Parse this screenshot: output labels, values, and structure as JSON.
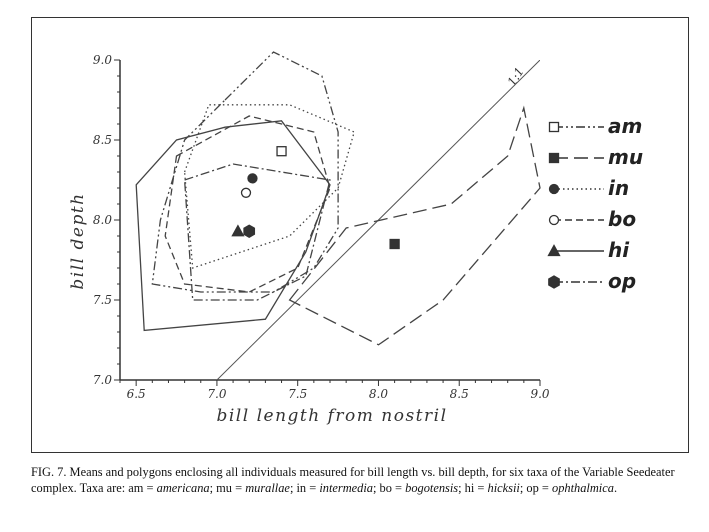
{
  "chart_data": {
    "type": "scatter",
    "title": "",
    "xlabel": "bill length from nostril",
    "ylabel": "bill depth",
    "xlim": [
      6.4,
      9.0
    ],
    "ylim": [
      7.0,
      9.0
    ],
    "x_ticks": [
      "6.5",
      "7.0",
      "7.5",
      "8.0",
      "8.5",
      "9.0"
    ],
    "y_ticks": [
      "7.0",
      "7.5",
      "8.0",
      "8.5",
      "9.0"
    ],
    "grid": false,
    "legend_position": "right",
    "reference_line": {
      "label": "1:1",
      "from": [
        7.0,
        7.0
      ],
      "to": [
        9.0,
        9.0
      ]
    },
    "series": [
      {
        "name": "am",
        "marker": "open-square",
        "line_style": "dash-dot-dot",
        "mean": [
          7.4,
          8.43
        ],
        "polygon": [
          [
            7.05,
            8.75
          ],
          [
            7.35,
            9.05
          ],
          [
            7.65,
            8.9
          ],
          [
            7.75,
            8.55
          ],
          [
            7.75,
            7.95
          ],
          [
            7.6,
            7.7
          ],
          [
            7.35,
            7.55
          ],
          [
            6.9,
            7.55
          ],
          [
            6.6,
            7.6
          ],
          [
            6.65,
            8.0
          ],
          [
            6.8,
            8.5
          ]
        ]
      },
      {
        "name": "mu",
        "marker": "filled-square",
        "line_style": "long-dash",
        "mean": [
          8.1,
          7.85
        ],
        "polygon": [
          [
            7.45,
            7.5
          ],
          [
            7.8,
            7.95
          ],
          [
            8.45,
            8.1
          ],
          [
            8.8,
            8.4
          ],
          [
            8.9,
            8.7
          ],
          [
            9.0,
            8.2
          ],
          [
            8.4,
            7.5
          ],
          [
            8.0,
            7.22
          ]
        ]
      },
      {
        "name": "in",
        "marker": "filled-circle",
        "line_style": "dotted",
        "mean": [
          7.22,
          8.26
        ],
        "polygon": [
          [
            6.8,
            8.3
          ],
          [
            6.95,
            8.72
          ],
          [
            7.45,
            8.72
          ],
          [
            7.85,
            8.55
          ],
          [
            7.75,
            8.2
          ],
          [
            7.45,
            7.9
          ],
          [
            6.85,
            7.7
          ]
        ]
      },
      {
        "name": "bo",
        "marker": "open-circle",
        "line_style": "dashed",
        "mean": [
          7.18,
          8.17
        ],
        "polygon": [
          [
            6.75,
            8.4
          ],
          [
            7.2,
            8.65
          ],
          [
            7.6,
            8.55
          ],
          [
            7.7,
            8.2
          ],
          [
            7.5,
            7.7
          ],
          [
            7.2,
            7.55
          ],
          [
            6.8,
            7.6
          ],
          [
            6.68,
            7.9
          ]
        ]
      },
      {
        "name": "hi",
        "marker": "filled-triangle",
        "line_style": "solid",
        "mean": [
          7.13,
          7.93
        ],
        "polygon": [
          [
            6.5,
            8.22
          ],
          [
            6.75,
            8.5
          ],
          [
            7.05,
            8.58
          ],
          [
            7.4,
            8.62
          ],
          [
            7.7,
            8.22
          ],
          [
            7.55,
            7.8
          ],
          [
            7.3,
            7.38
          ],
          [
            6.55,
            7.31
          ]
        ]
      },
      {
        "name": "op",
        "marker": "filled-hexagon",
        "line_style": "dash-dot",
        "mean": [
          7.2,
          7.93
        ],
        "polygon": [
          [
            6.8,
            8.25
          ],
          [
            7.1,
            8.35
          ],
          [
            7.4,
            8.3
          ],
          [
            7.7,
            8.25
          ],
          [
            7.55,
            7.65
          ],
          [
            7.25,
            7.5
          ],
          [
            6.85,
            7.5
          ]
        ]
      }
    ]
  },
  "caption": {
    "prefix": "FIG. 7. Means and polygons enclosing all individuals measured for bill length vs. bill depth, for six taxa of the Variable Seedeater complex. Taxa are: am = ",
    "am": "americana",
    "sep1": "; mu = ",
    "mu": "murallae",
    "sep2": "; in = ",
    "in": "intermedia",
    "sep3": "; bo = ",
    "bo": "bogotensis",
    "sep4": "; hi = ",
    "hi": "hicksii",
    "sep5": "; op = ",
    "op": "ophthalmica",
    "suffix": "."
  }
}
